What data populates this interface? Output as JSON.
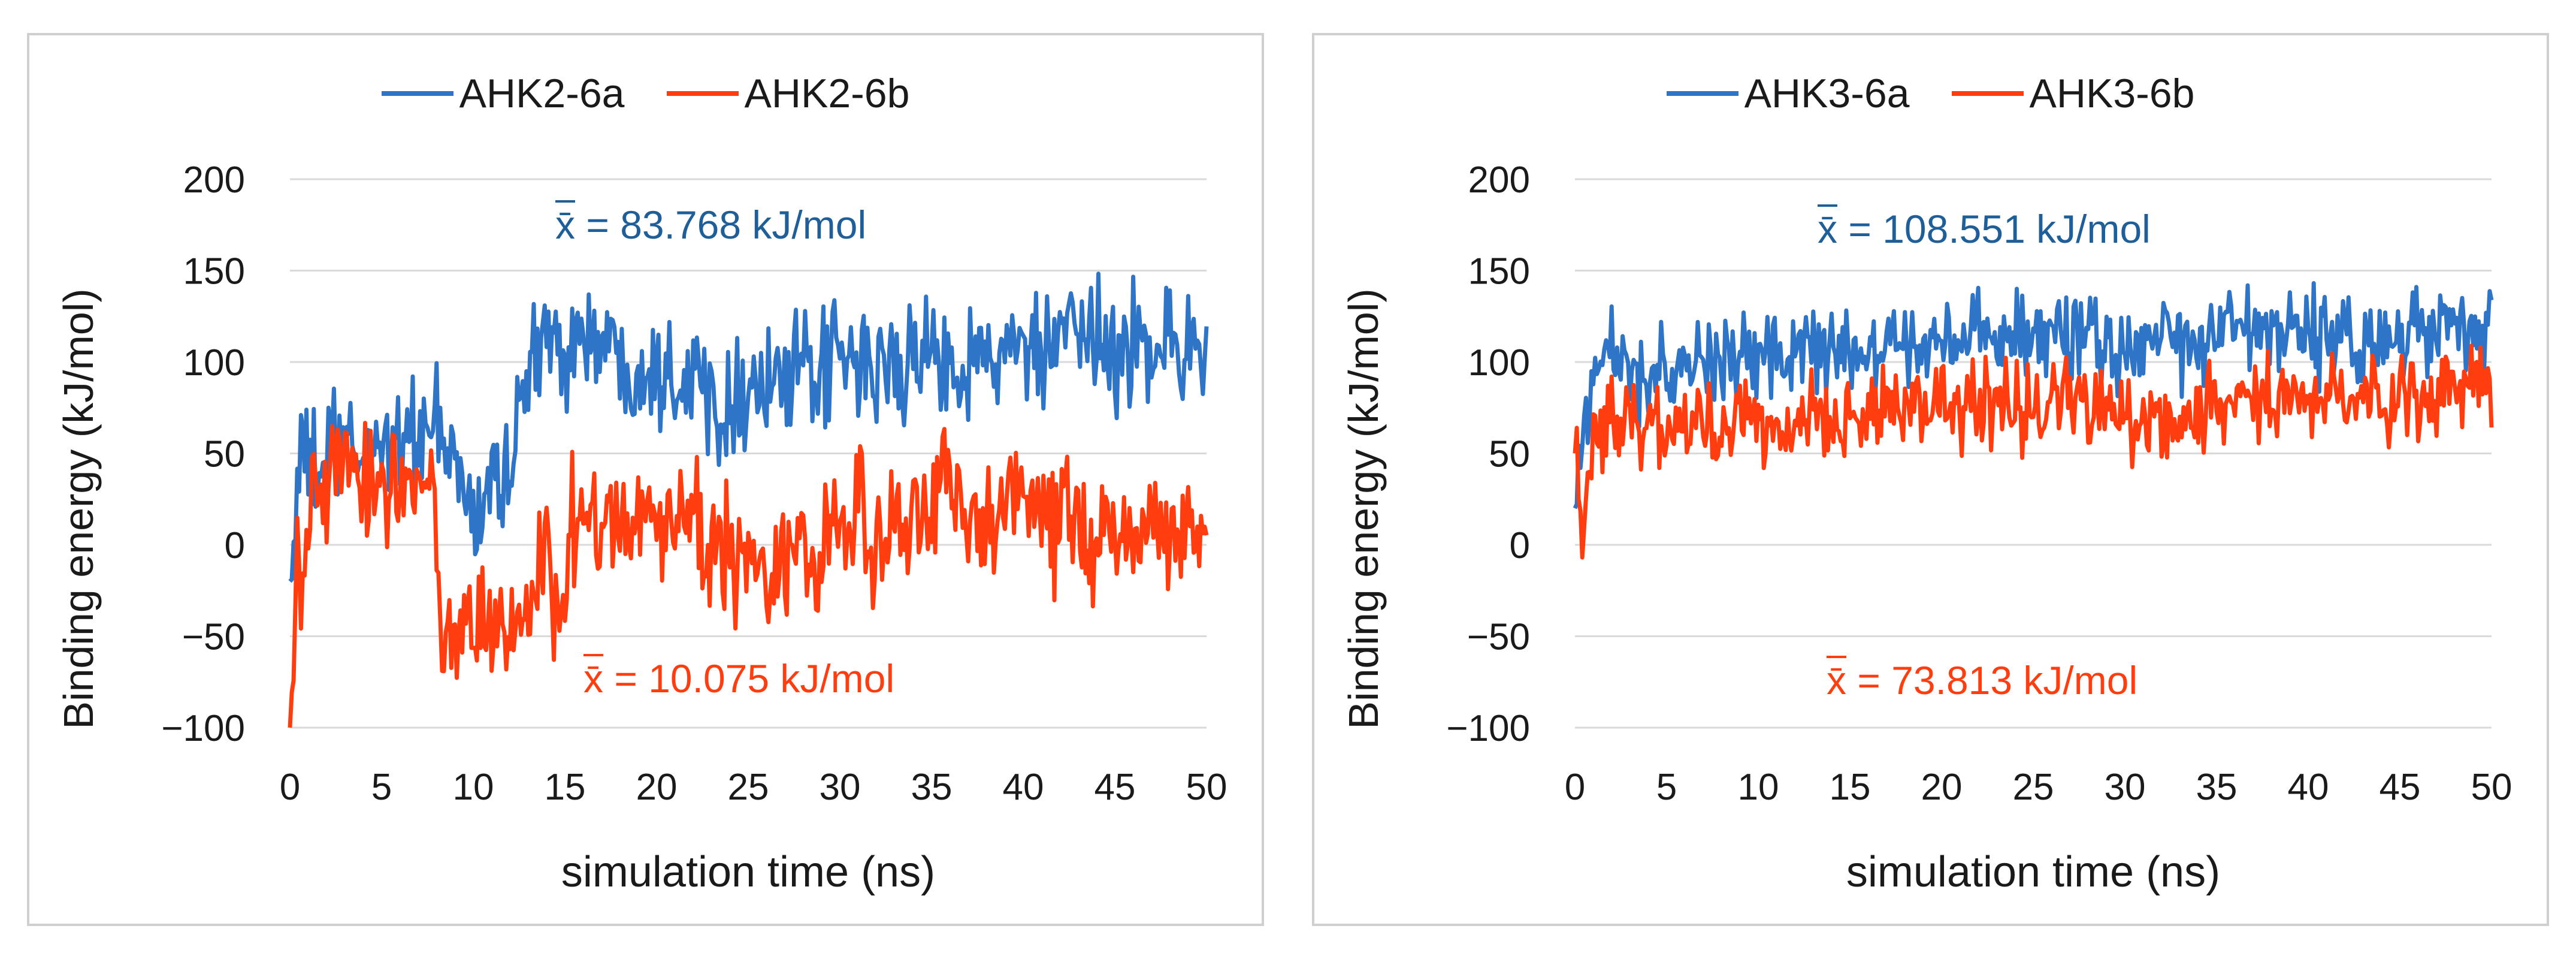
{
  "chart_data": [
    {
      "type": "line",
      "xlabel": "simulation time (ns)",
      "ylabel": "Binding energy (kJ/mol)",
      "xlim": [
        0,
        50
      ],
      "ylim": [
        -100,
        200
      ],
      "xticks": [
        0,
        5,
        10,
        15,
        20,
        25,
        30,
        35,
        40,
        45,
        50
      ],
      "yticks": [
        200,
        150,
        100,
        50,
        0,
        -50,
        -100
      ],
      "ytick_labels": [
        "200",
        "150",
        "100",
        "50",
        "0",
        "−50",
        "−100"
      ],
      "grid": true,
      "legend_position": "top-center",
      "series": [
        {
          "name": "AHK2-6a",
          "color": "#2e75c7",
          "mean_symbol": "x̄",
          "mean_text": " = 83.768 kJ/mol",
          "keypoints": [
            [
              0,
              -20
            ],
            [
              0.5,
              45
            ],
            [
              1.5,
              40
            ],
            [
              2.5,
              55
            ],
            [
              4,
              48
            ],
            [
              5,
              60
            ],
            [
              6,
              55
            ],
            [
              7,
              62
            ],
            [
              8,
              58
            ],
            [
              9,
              48
            ],
            [
              10,
              10
            ],
            [
              11,
              35
            ],
            [
              12,
              45
            ],
            [
              13,
              95
            ],
            [
              14,
              110
            ],
            [
              15,
              112
            ],
            [
              16,
              115
            ],
            [
              17,
              110
            ],
            [
              18,
              102
            ],
            [
              19,
              100
            ],
            [
              20,
              98
            ],
            [
              21,
              96
            ],
            [
              22,
              95
            ],
            [
              23,
              80
            ],
            [
              24,
              82
            ],
            [
              25,
              85
            ],
            [
              26,
              90
            ],
            [
              27,
              88
            ],
            [
              28,
              92
            ],
            [
              29,
              95
            ],
            [
              30,
              100
            ],
            [
              31,
              98
            ],
            [
              32,
              96
            ],
            [
              33,
              97
            ],
            [
              34,
              100
            ],
            [
              35,
              102
            ],
            [
              36,
              104
            ],
            [
              37,
              100
            ],
            [
              38,
              102
            ],
            [
              39,
              106
            ],
            [
              40,
              104
            ],
            [
              41,
              105
            ],
            [
              42,
              108
            ],
            [
              43,
              110
            ],
            [
              44,
              112
            ],
            [
              45,
              105
            ],
            [
              46,
              110
            ],
            [
              47,
              112
            ],
            [
              48,
              108
            ],
            [
              49,
              110
            ],
            [
              50,
              108
            ]
          ],
          "noise": 20
        },
        {
          "name": "AHK2-6b",
          "color": "#ff3d0f",
          "mean_symbol": "x̄",
          "mean_text": " = 10.075 kJ/mol",
          "keypoints": [
            [
              0,
              -100
            ],
            [
              0.3,
              -30
            ],
            [
              1,
              10
            ],
            [
              2,
              30
            ],
            [
              2.5,
              60
            ],
            [
              3,
              35
            ],
            [
              4,
              30
            ],
            [
              5,
              35
            ],
            [
              6,
              38
            ],
            [
              7,
              40
            ],
            [
              7.8,
              30
            ],
            [
              8,
              -40
            ],
            [
              9,
              -50
            ],
            [
              10,
              -35
            ],
            [
              11,
              -45
            ],
            [
              12,
              -50
            ],
            [
              13,
              -40
            ],
            [
              14,
              -5
            ],
            [
              15,
              -40
            ],
            [
              15.5,
              10
            ],
            [
              16,
              5
            ],
            [
              17,
              15
            ],
            [
              18,
              20
            ],
            [
              19,
              25
            ],
            [
              20,
              5
            ],
            [
              21,
              10
            ],
            [
              22,
              15
            ],
            [
              23,
              0
            ],
            [
              24,
              -10
            ],
            [
              25,
              -5
            ],
            [
              26,
              -5
            ],
            [
              27,
              -10
            ],
            [
              28,
              0
            ],
            [
              29,
              -5
            ],
            [
              30,
              5
            ],
            [
              31,
              10
            ],
            [
              32,
              5
            ],
            [
              33,
              15
            ],
            [
              34,
              20
            ],
            [
              35,
              30
            ],
            [
              36,
              25
            ],
            [
              37,
              20
            ],
            [
              38,
              15
            ],
            [
              39,
              25
            ],
            [
              40,
              30
            ],
            [
              41,
              20
            ],
            [
              42,
              15
            ],
            [
              43,
              10
            ],
            [
              44,
              5
            ],
            [
              45,
              0
            ],
            [
              46,
              5
            ],
            [
              47,
              10
            ],
            [
              48,
              5
            ],
            [
              49,
              20
            ],
            [
              50,
              0
            ]
          ],
          "noise": 22
        }
      ]
    },
    {
      "type": "line",
      "xlabel": "simulation time (ns)",
      "ylabel": "Binding energy (kJ/mol)",
      "xlim": [
        0,
        50
      ],
      "ylim": [
        -100,
        200
      ],
      "xticks": [
        0,
        5,
        10,
        15,
        20,
        25,
        30,
        35,
        40,
        45,
        50
      ],
      "yticks": [
        200,
        150,
        100,
        50,
        0,
        -50,
        -100
      ],
      "ytick_labels": [
        "200",
        "150",
        "100",
        "50",
        "0",
        "−50",
        "−100"
      ],
      "grid": true,
      "legend_position": "top-center",
      "series": [
        {
          "name": "AHK3-6a",
          "color": "#2e75c7",
          "mean_symbol": "x̄",
          "mean_text": " = 108.551 kJ/mol",
          "keypoints": [
            [
              0,
              20
            ],
            [
              1,
              100
            ],
            [
              2,
              105
            ],
            [
              3,
              95
            ],
            [
              5,
              98
            ],
            [
              8,
              100
            ],
            [
              10,
              102
            ],
            [
              12,
              105
            ],
            [
              15,
              106
            ],
            [
              18,
              108
            ],
            [
              20,
              110
            ],
            [
              22,
              112
            ],
            [
              24,
              115
            ],
            [
              26,
              114
            ],
            [
              28,
              112
            ],
            [
              30,
              108
            ],
            [
              32,
              110
            ],
            [
              34,
              112
            ],
            [
              36,
              114
            ],
            [
              38,
              116
            ],
            [
              40,
              115
            ],
            [
              42,
              113
            ],
            [
              44,
              112
            ],
            [
              46,
              115
            ],
            [
              48,
              118
            ],
            [
              50,
              125
            ]
          ],
          "noise": 15
        },
        {
          "name": "AHK3-6b",
          "color": "#ff3d0f",
          "mean_symbol": "x̄",
          "mean_text": " = 73.813 kJ/mol",
          "keypoints": [
            [
              0,
              50
            ],
            [
              0.5,
              20
            ],
            [
              1,
              55
            ],
            [
              2,
              70
            ],
            [
              4,
              68
            ],
            [
              6,
              65
            ],
            [
              8,
              66
            ],
            [
              10,
              68
            ],
            [
              12,
              70
            ],
            [
              15,
              72
            ],
            [
              18,
              75
            ],
            [
              20,
              78
            ],
            [
              22,
              77
            ],
            [
              24,
              76
            ],
            [
              26,
              78
            ],
            [
              28,
              80
            ],
            [
              30,
              72
            ],
            [
              32,
              60
            ],
            [
              33,
              75
            ],
            [
              35,
              78
            ],
            [
              38,
              80
            ],
            [
              40,
              82
            ],
            [
              42,
              80
            ],
            [
              44,
              78
            ],
            [
              46,
              80
            ],
            [
              48,
              85
            ],
            [
              50,
              90
            ]
          ],
          "noise": 15
        }
      ]
    }
  ]
}
